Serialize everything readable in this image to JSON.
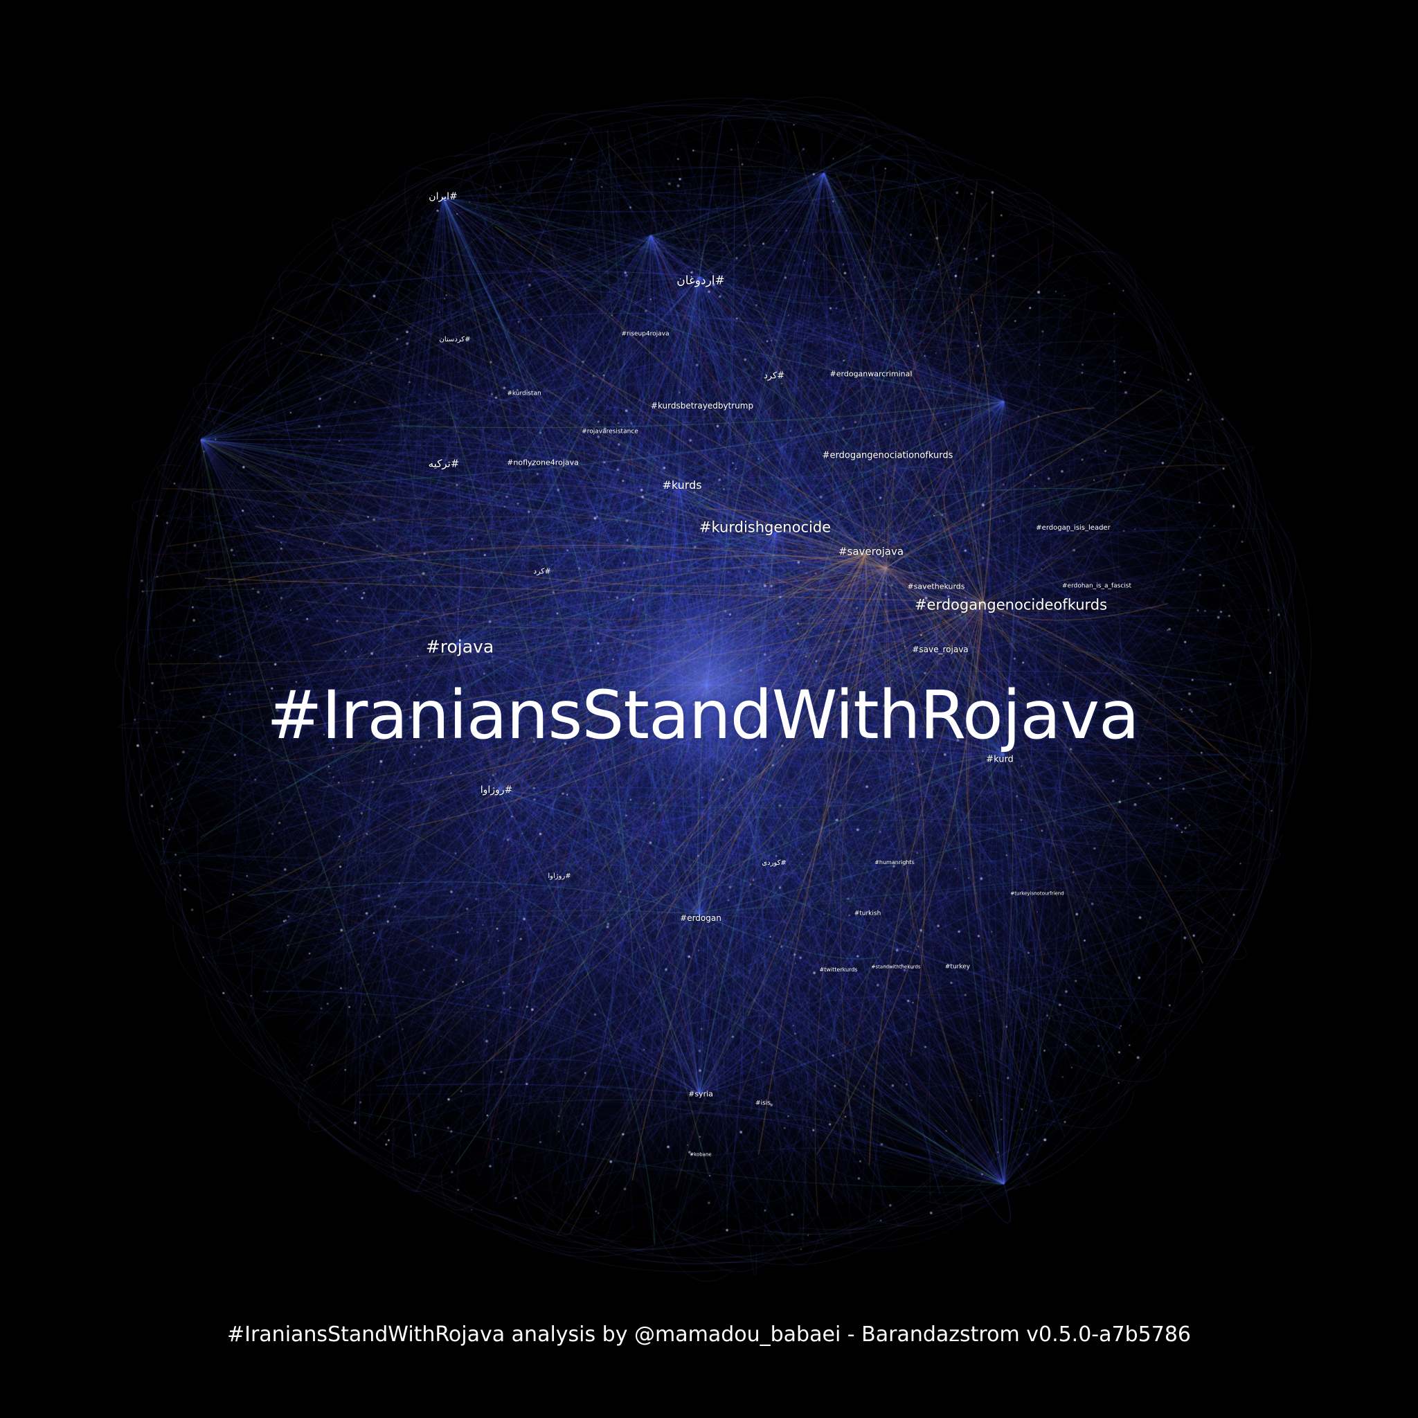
{
  "main_hashtag": "#IraniansStandWithRojava",
  "footer_caption": "#IraniansStandWithRojava analysis by @mamadou_babaei - Barandazstrom v0.5.0-a7b5786",
  "colors": {
    "background": "#000000",
    "edge_primary": "#4b5cff",
    "edge_orange": "#e8a24a",
    "edge_green": "#7fdc6a",
    "edge_teal": "#4fc6c0",
    "edge_red": "#d2385a",
    "label": "#ffffff"
  },
  "hashtag_labels": {
    "rojava": "#rojava",
    "kurdishgenocide": "#kurdishgenocide",
    "erdogangenocideofkurds": "#erdogangenocideofkurds",
    "kurds": "#kurds",
    "saverojava": "#saverojava",
    "save_rojava": "#save_rojava",
    "savethekurds": "#savethekurds",
    "erdogangenociationofkurds": "#erdogangenociationofkurds",
    "erdoganwarcriminal": "#erdoganwarcriminal",
    "kurdsbetrayedbytrump": "#kurdsbetrayedbytrump",
    "noflyzone4rojava": "#noflyzone4rojava",
    "riseup4rojava": "#riseup4rojava",
    "rojavaresistance": "#rojavaresistance",
    "kurdistan": "#kurdistan",
    "kurd": "#kurd",
    "erdogan": "#erdogan",
    "syria": "#syria",
    "isis": "#isis",
    "turkish": "#turkish",
    "turkey": "#turkey",
    "humanrights": "#humanrights",
    "twitterkurds": "#twitterkurds",
    "standwiththekurds": "#standwiththekurds",
    "erdogan_isis_leader": "#erdogan_isis_leader",
    "erdohan_is_a_fascist": "#erdohan_is_a_fascist",
    "turkeyisnotourfriend": "#turkeyisnotourfriend",
    "kobane": "#kobane",
    "iran_fa": "#ایران",
    "erdogan_fa": "#اردوغان",
    "turkey_fa": "#ترکیه",
    "kurd_fa": "#کرد",
    "rojava_fa": "#روژاوا",
    "rojava_fa2": "#روژاوا",
    "kurdistan_fa": "#کردستان",
    "kurds_fa": "#کرد",
    "kurdi_fa": "#کوردی"
  }
}
